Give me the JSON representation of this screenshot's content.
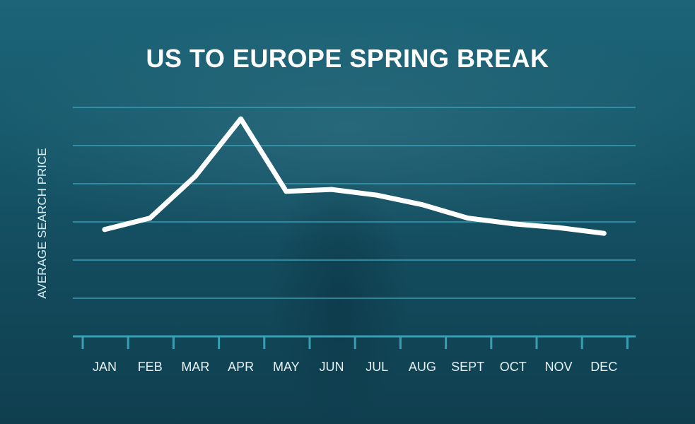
{
  "chart_data": {
    "type": "line",
    "title": "US TO EUROPE SPRING BREAK",
    "xlabel": "",
    "ylabel": "AVERAGE SEARCH PRICE",
    "categories": [
      "JAN",
      "FEB",
      "MAR",
      "APR",
      "MAY",
      "JUN",
      "JUL",
      "AUG",
      "SEPT",
      "OCT",
      "NOV",
      "DEC"
    ],
    "series": [
      {
        "values": [
          2.8,
          3.1,
          4.2,
          5.7,
          3.8,
          3.85,
          3.7,
          3.45,
          3.1,
          2.95,
          2.85,
          2.7
        ]
      }
    ],
    "ylim": [
      0,
      6
    ],
    "y_ticks_shown": false,
    "grid": true,
    "legend": "none",
    "colors": {
      "line": "#ffffff",
      "grid": "#3aa3b9",
      "text": "#e2f1f4",
      "background": "#175a6d"
    }
  }
}
